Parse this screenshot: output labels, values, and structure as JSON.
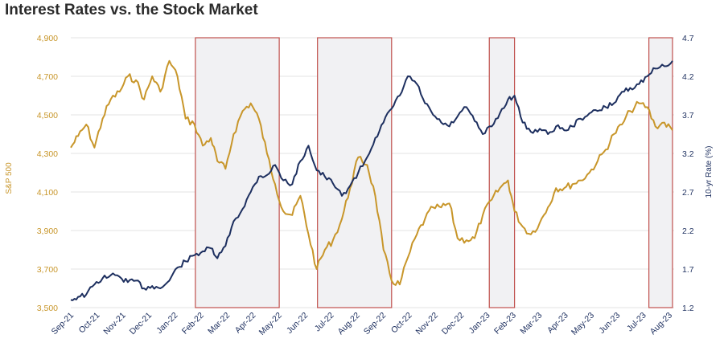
{
  "chart_data": {
    "type": "line",
    "title": "Interest Rates vs. the Stock Market",
    "ylabel_left": "S&P 500",
    "ylabel_right": "10-yr Rate (%)",
    "x_tick_labels": [
      "Sep-21",
      "Oct-21",
      "Nov-21",
      "Dec-21",
      "Jan-22",
      "Feb-22",
      "Mar-22",
      "Apr-22",
      "May-22",
      "Jun-22",
      "Jul-22",
      "Aug-22",
      "Sep-22",
      "Oct-22",
      "Nov-22",
      "Dec-22",
      "Jan-23",
      "Feb-23",
      "Mar-23",
      "Apr-23",
      "May-23",
      "Jun-23",
      "Jul-23",
      "Aug-23"
    ],
    "y_left_ticks": [
      "3,500",
      "3,700",
      "3,900",
      "4,100",
      "4,300",
      "4,500",
      "4,700",
      "4,900"
    ],
    "y_right_ticks": [
      "1.2",
      "1.7",
      "2.2",
      "2.7",
      "3.2",
      "3.7",
      "4.2",
      "4.7"
    ],
    "ylim_left": [
      3500,
      4900
    ],
    "ylim_right": [
      1.2,
      4.7
    ],
    "grid": true,
    "colors": {
      "sp500": "#c8962a",
      "rate": "#1d2f5f",
      "shade_fill": "#f1f1f3",
      "shade_border": "#c0504d",
      "grid": "#e3e3e3"
    },
    "shaded_periods": [
      {
        "start": "2022-02-01",
        "end": "2022-05-15"
      },
      {
        "start": "2022-07-01",
        "end": "2022-09-30"
      },
      {
        "start": "2023-01-28",
        "end": "2023-02-28"
      },
      {
        "start": "2023-08-12",
        "end": "2023-09-10"
      }
    ],
    "series": [
      {
        "key": "sp500",
        "axis": "left",
        "dates": [
          "2021-09-01",
          "2021-09-10",
          "2021-09-20",
          "2021-09-30",
          "2021-10-10",
          "2021-10-20",
          "2021-10-31",
          "2021-11-10",
          "2021-11-20",
          "2021-11-30",
          "2021-12-10",
          "2021-12-20",
          "2021-12-31",
          "2022-01-10",
          "2022-01-20",
          "2022-01-31",
          "2022-02-10",
          "2022-02-20",
          "2022-02-28",
          "2022-03-10",
          "2022-03-20",
          "2022-03-31",
          "2022-04-10",
          "2022-04-20",
          "2022-04-30",
          "2022-05-10",
          "2022-05-20",
          "2022-05-31",
          "2022-06-10",
          "2022-06-20",
          "2022-06-30",
          "2022-07-10",
          "2022-07-20",
          "2022-07-31",
          "2022-08-10",
          "2022-08-20",
          "2022-08-31",
          "2022-09-10",
          "2022-09-20",
          "2022-09-30",
          "2022-10-10",
          "2022-10-20",
          "2022-10-31",
          "2022-11-10",
          "2022-11-20",
          "2022-11-30",
          "2022-12-10",
          "2022-12-20",
          "2022-12-31",
          "2023-01-10",
          "2023-01-20",
          "2023-01-31",
          "2023-02-10",
          "2023-02-20",
          "2023-02-28",
          "2023-03-10",
          "2023-03-20",
          "2023-03-31",
          "2023-04-10",
          "2023-04-20",
          "2023-04-30",
          "2023-05-10",
          "2023-05-20",
          "2023-05-31",
          "2023-06-10",
          "2023-06-20",
          "2023-06-30",
          "2023-07-10",
          "2023-07-20",
          "2023-07-31",
          "2023-08-10",
          "2023-08-20",
          "2023-08-31",
          "2023-09-10"
        ],
        "values": [
          4330,
          4390,
          4450,
          4330,
          4480,
          4580,
          4620,
          4700,
          4680,
          4580,
          4700,
          4620,
          4780,
          4700,
          4480,
          4450,
          4340,
          4380,
          4260,
          4220,
          4400,
          4520,
          4560,
          4480,
          4300,
          4140,
          4000,
          3980,
          4080,
          3880,
          3700,
          3800,
          3850,
          3960,
          4120,
          4280,
          4240,
          4080,
          3800,
          3640,
          3620,
          3760,
          3880,
          3960,
          4020,
          4020,
          4040,
          3860,
          3850,
          3860,
          3980,
          4060,
          4120,
          4160,
          4000,
          3920,
          3880,
          3940,
          4020,
          4120,
          4120,
          4140,
          4160,
          4200,
          4260,
          4320,
          4400,
          4450,
          4520,
          4560,
          4540,
          4440,
          4460,
          4420
        ]
      },
      {
        "key": "rate",
        "axis": "right",
        "dates": [
          "2021-09-01",
          "2021-09-10",
          "2021-09-20",
          "2021-09-30",
          "2021-10-10",
          "2021-10-20",
          "2021-10-31",
          "2021-11-10",
          "2021-11-20",
          "2021-11-30",
          "2021-12-10",
          "2021-12-20",
          "2021-12-31",
          "2022-01-10",
          "2022-01-20",
          "2022-01-31",
          "2022-02-10",
          "2022-02-20",
          "2022-02-28",
          "2022-03-10",
          "2022-03-20",
          "2022-03-31",
          "2022-04-10",
          "2022-04-20",
          "2022-04-30",
          "2022-05-10",
          "2022-05-20",
          "2022-05-31",
          "2022-06-10",
          "2022-06-20",
          "2022-06-30",
          "2022-07-10",
          "2022-07-20",
          "2022-07-31",
          "2022-08-10",
          "2022-08-20",
          "2022-08-31",
          "2022-09-10",
          "2022-09-20",
          "2022-09-30",
          "2022-10-10",
          "2022-10-20",
          "2022-10-31",
          "2022-11-10",
          "2022-11-20",
          "2022-11-30",
          "2022-12-10",
          "2022-12-20",
          "2022-12-31",
          "2023-01-10",
          "2023-01-20",
          "2023-01-31",
          "2023-02-10",
          "2023-02-20",
          "2023-02-28",
          "2023-03-10",
          "2023-03-20",
          "2023-03-31",
          "2023-04-10",
          "2023-04-20",
          "2023-04-30",
          "2023-05-10",
          "2023-05-20",
          "2023-05-31",
          "2023-06-10",
          "2023-06-20",
          "2023-06-30",
          "2023-07-10",
          "2023-07-20",
          "2023-07-31",
          "2023-08-10",
          "2023-08-20",
          "2023-08-31",
          "2023-09-10"
        ],
        "values": [
          1.3,
          1.34,
          1.37,
          1.5,
          1.58,
          1.62,
          1.6,
          1.53,
          1.55,
          1.45,
          1.48,
          1.45,
          1.55,
          1.72,
          1.8,
          1.88,
          1.93,
          1.97,
          1.84,
          2.0,
          2.32,
          2.48,
          2.7,
          2.9,
          2.92,
          3.05,
          2.85,
          2.8,
          3.1,
          3.3,
          2.98,
          2.9,
          2.81,
          2.65,
          2.78,
          2.95,
          3.15,
          3.4,
          3.6,
          3.78,
          3.95,
          4.2,
          4.1,
          3.85,
          3.7,
          3.6,
          3.55,
          3.68,
          3.8,
          3.62,
          3.45,
          3.55,
          3.72,
          3.9,
          3.95,
          3.6,
          3.48,
          3.52,
          3.45,
          3.55,
          3.5,
          3.55,
          3.65,
          3.72,
          3.75,
          3.8,
          3.85,
          4.0,
          4.05,
          4.1,
          4.2,
          4.3,
          4.33,
          4.4
        ]
      }
    ]
  }
}
